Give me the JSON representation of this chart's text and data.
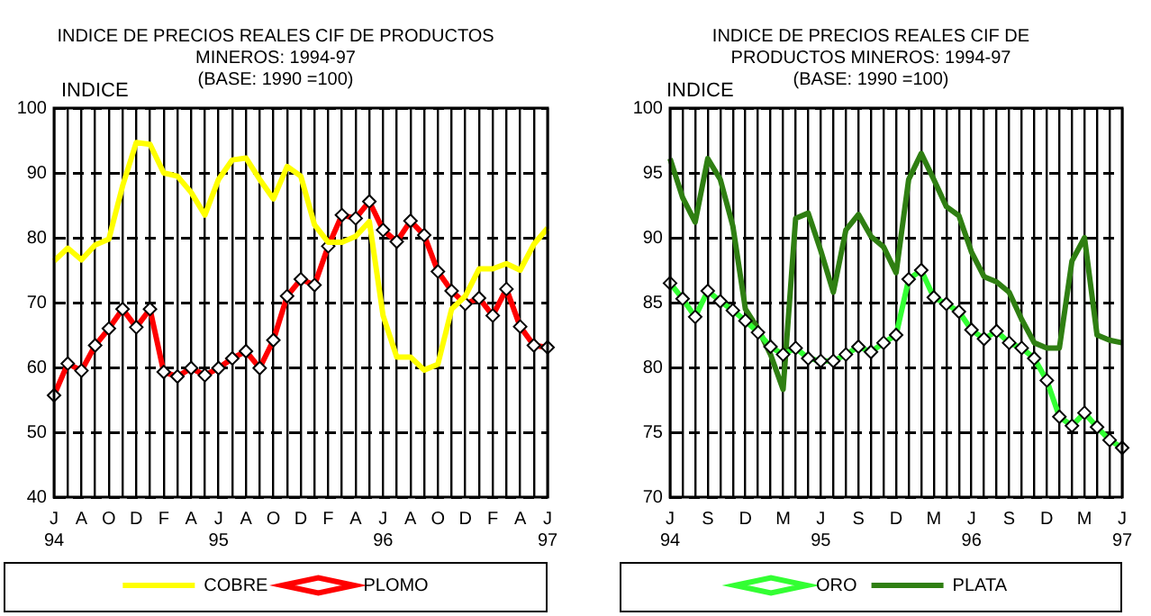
{
  "chart_data": [
    {
      "type": "line",
      "title": "INDICE DE PRECIOS REALES CIF DE PRODUCTOS\nMINEROS: 1994-97",
      "subtitle": "(BASE: 1990 =100)",
      "ylabel": "INDICE",
      "categories": [
        "J\n94",
        null,
        "A",
        null,
        "O",
        null,
        "D",
        null,
        "F",
        null,
        "A",
        null,
        "J\n95",
        null,
        "A",
        null,
        "O",
        null,
        "D",
        null,
        "F",
        null,
        "A",
        null,
        "J\n96",
        null,
        "A",
        null,
        "O",
        null,
        "D",
        null,
        "F",
        null,
        "A",
        null,
        "J\n97"
      ],
      "series": [
        {
          "name": "COBRE",
          "color": "#ffff00",
          "marker": "none",
          "values": [
            76.4,
            78.4,
            76.6,
            78.9,
            79.8,
            88,
            94.7,
            94.4,
            90,
            89.5,
            87,
            83.5,
            89,
            92,
            92.3,
            89,
            86,
            91,
            89.5,
            82,
            79.3,
            79.3,
            80.2,
            82.5,
            68,
            61.6,
            61.6,
            59.6,
            60.5,
            69,
            71,
            75.2,
            75.2,
            76,
            75,
            79,
            81.5
          ]
        },
        {
          "name": "PLOMO",
          "color": "#ff0000",
          "marker": "diamond",
          "values": [
            55.7,
            60.6,
            59.5,
            63.4,
            66,
            69,
            66.2,
            69,
            59.3,
            58.6,
            59.9,
            58.8,
            59.9,
            61.4,
            62.5,
            59.9,
            64.2,
            71,
            73.6,
            72.7,
            78.7,
            83.5,
            83,
            85.6,
            81.2,
            79.4,
            82.6,
            80.4,
            74.8,
            71.8,
            69.8,
            70.7,
            68,
            72.1,
            66.3,
            63.4,
            63.1
          ]
        }
      ],
      "ylim": [
        40,
        100
      ],
      "yticks": [
        40,
        50,
        60,
        70,
        80,
        90,
        100
      ],
      "grid": true,
      "legend": "bottom"
    },
    {
      "type": "line",
      "title": "INDICE DE PRECIOS REALES CIF DE\nPRODUCTOS MINEROS: 1994-97",
      "subtitle": "(BASE: 1990 =100)",
      "ylabel": "INDICE",
      "categories": [
        "J\n94",
        null,
        null,
        "S",
        null,
        null,
        "D",
        null,
        null,
        "M",
        null,
        null,
        "J\n95",
        null,
        null,
        "S",
        null,
        null,
        "D",
        null,
        null,
        "M",
        null,
        null,
        "J\n96",
        null,
        null,
        "S",
        null,
        null,
        "D",
        null,
        null,
        "M",
        null,
        null,
        "J\n97"
      ],
      "series": [
        {
          "name": "ORO",
          "color": "#33ff33",
          "marker": "diamond",
          "values": [
            86.5,
            85.3,
            83.9,
            85.9,
            85.1,
            84.4,
            83.6,
            82.7,
            81.6,
            81,
            81.5,
            80.7,
            80.5,
            80.5,
            81,
            81.6,
            81.2,
            81.9,
            82.5,
            86.8,
            87.5,
            85.4,
            84.9,
            84.3,
            82.9,
            82.2,
            82.8,
            81.9,
            81.5,
            80.7,
            79,
            76.2,
            75.5,
            76.5,
            75.4,
            74.4,
            73.8
          ]
        },
        {
          "name": "PLATA",
          "color": "#2f7f12",
          "marker": "none",
          "values": [
            96.1,
            93.1,
            91.2,
            96.1,
            94.5,
            90.9,
            84.5,
            83,
            81,
            78.3,
            91.5,
            91.9,
            89,
            85.8,
            90.6,
            91.8,
            90.1,
            89.3,
            87.3,
            94.5,
            96.5,
            94.5,
            92.4,
            91.7,
            88.9,
            87,
            86.6,
            85.8,
            83.7,
            81.9,
            81.5,
            81.5,
            88.2,
            90,
            82.5,
            82.1,
            81.9
          ]
        }
      ],
      "ylim": [
        70,
        100
      ],
      "yticks": [
        70,
        75,
        80,
        85,
        90,
        95,
        100
      ],
      "grid": true,
      "legend": "bottom"
    }
  ]
}
